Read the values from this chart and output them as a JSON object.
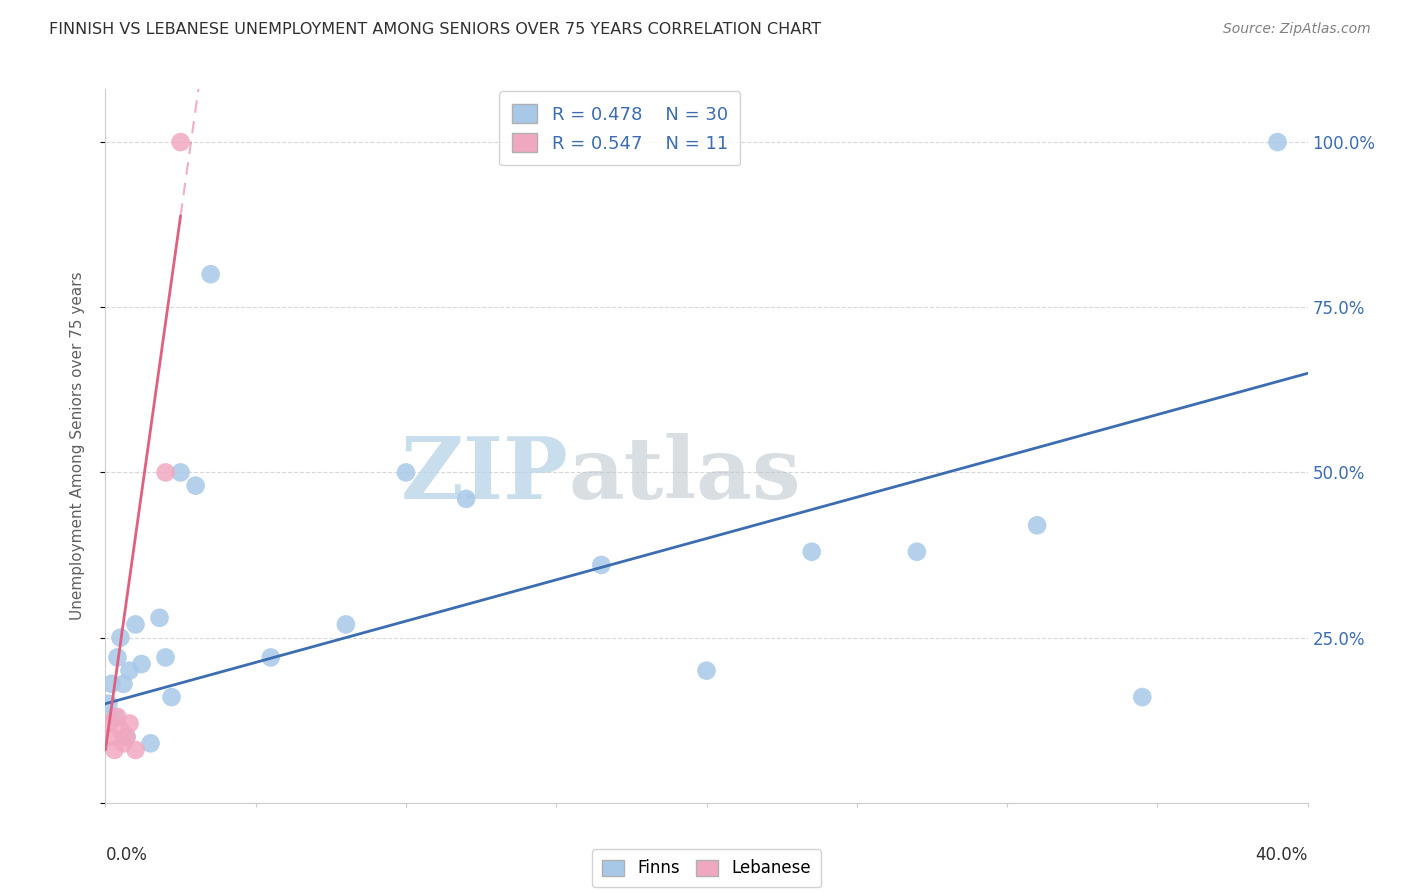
{
  "title": "FINNISH VS LEBANESE UNEMPLOYMENT AMONG SENIORS OVER 75 YEARS CORRELATION CHART",
  "source": "Source: ZipAtlas.com",
  "ylabel": "Unemployment Among Seniors over 75 years",
  "xmin": 0.0,
  "xmax": 0.4,
  "ymin": 0.0,
  "ymax": 1.08,
  "ytick_values": [
    0.0,
    0.25,
    0.5,
    0.75,
    1.0
  ],
  "ytick_labels": [
    "",
    "25.0%",
    "50.0%",
    "75.0%",
    "100.0%"
  ],
  "watermark_zip": "ZIP",
  "watermark_atlas": "atlas",
  "blue_scatter_color": "#a8c8e8",
  "pink_scatter_color": "#f0a8c0",
  "blue_line_color": "#3c6db0",
  "pink_line_color": "#e06080",
  "grid_color": "#d8d8d8",
  "background_color": "#ffffff",
  "axis_color": "#cccccc",
  "label_color": "#3c6db0",
  "title_color": "#303030",
  "source_color": "#808080",
  "ylabel_color": "#606060",
  "finns_x": [
    0.001,
    0.002,
    0.003,
    0.004,
    0.005,
    0.006,
    0.007,
    0.008,
    0.01,
    0.012,
    0.015,
    0.018,
    0.02,
    0.022,
    0.025,
    0.03,
    0.035,
    0.055,
    0.08,
    0.1,
    0.12,
    0.165,
    0.2,
    0.235,
    0.27,
    0.31,
    0.345,
    0.39
  ],
  "finns_y": [
    0.15,
    0.18,
    0.13,
    0.22,
    0.25,
    0.18,
    0.1,
    0.2,
    0.27,
    0.21,
    0.09,
    0.28,
    0.22,
    0.16,
    0.5,
    0.48,
    0.8,
    0.22,
    0.27,
    0.5,
    0.46,
    0.36,
    0.2,
    0.38,
    0.38,
    0.42,
    0.16,
    1.0
  ],
  "lebanese_x": [
    0.001,
    0.002,
    0.003,
    0.004,
    0.005,
    0.006,
    0.007,
    0.008,
    0.01,
    0.02,
    0.025
  ],
  "lebanese_y": [
    0.12,
    0.1,
    0.08,
    0.13,
    0.11,
    0.09,
    0.1,
    0.12,
    0.08,
    0.5,
    1.0
  ],
  "blue_regression_x0": 0.0,
  "blue_regression_y0": 0.15,
  "blue_regression_x1": 0.4,
  "blue_regression_y1": 0.65,
  "pink_regression_x0": 0.0,
  "pink_regression_y0": 0.08,
  "pink_regression_x1": 0.03,
  "pink_regression_y1": 1.05
}
